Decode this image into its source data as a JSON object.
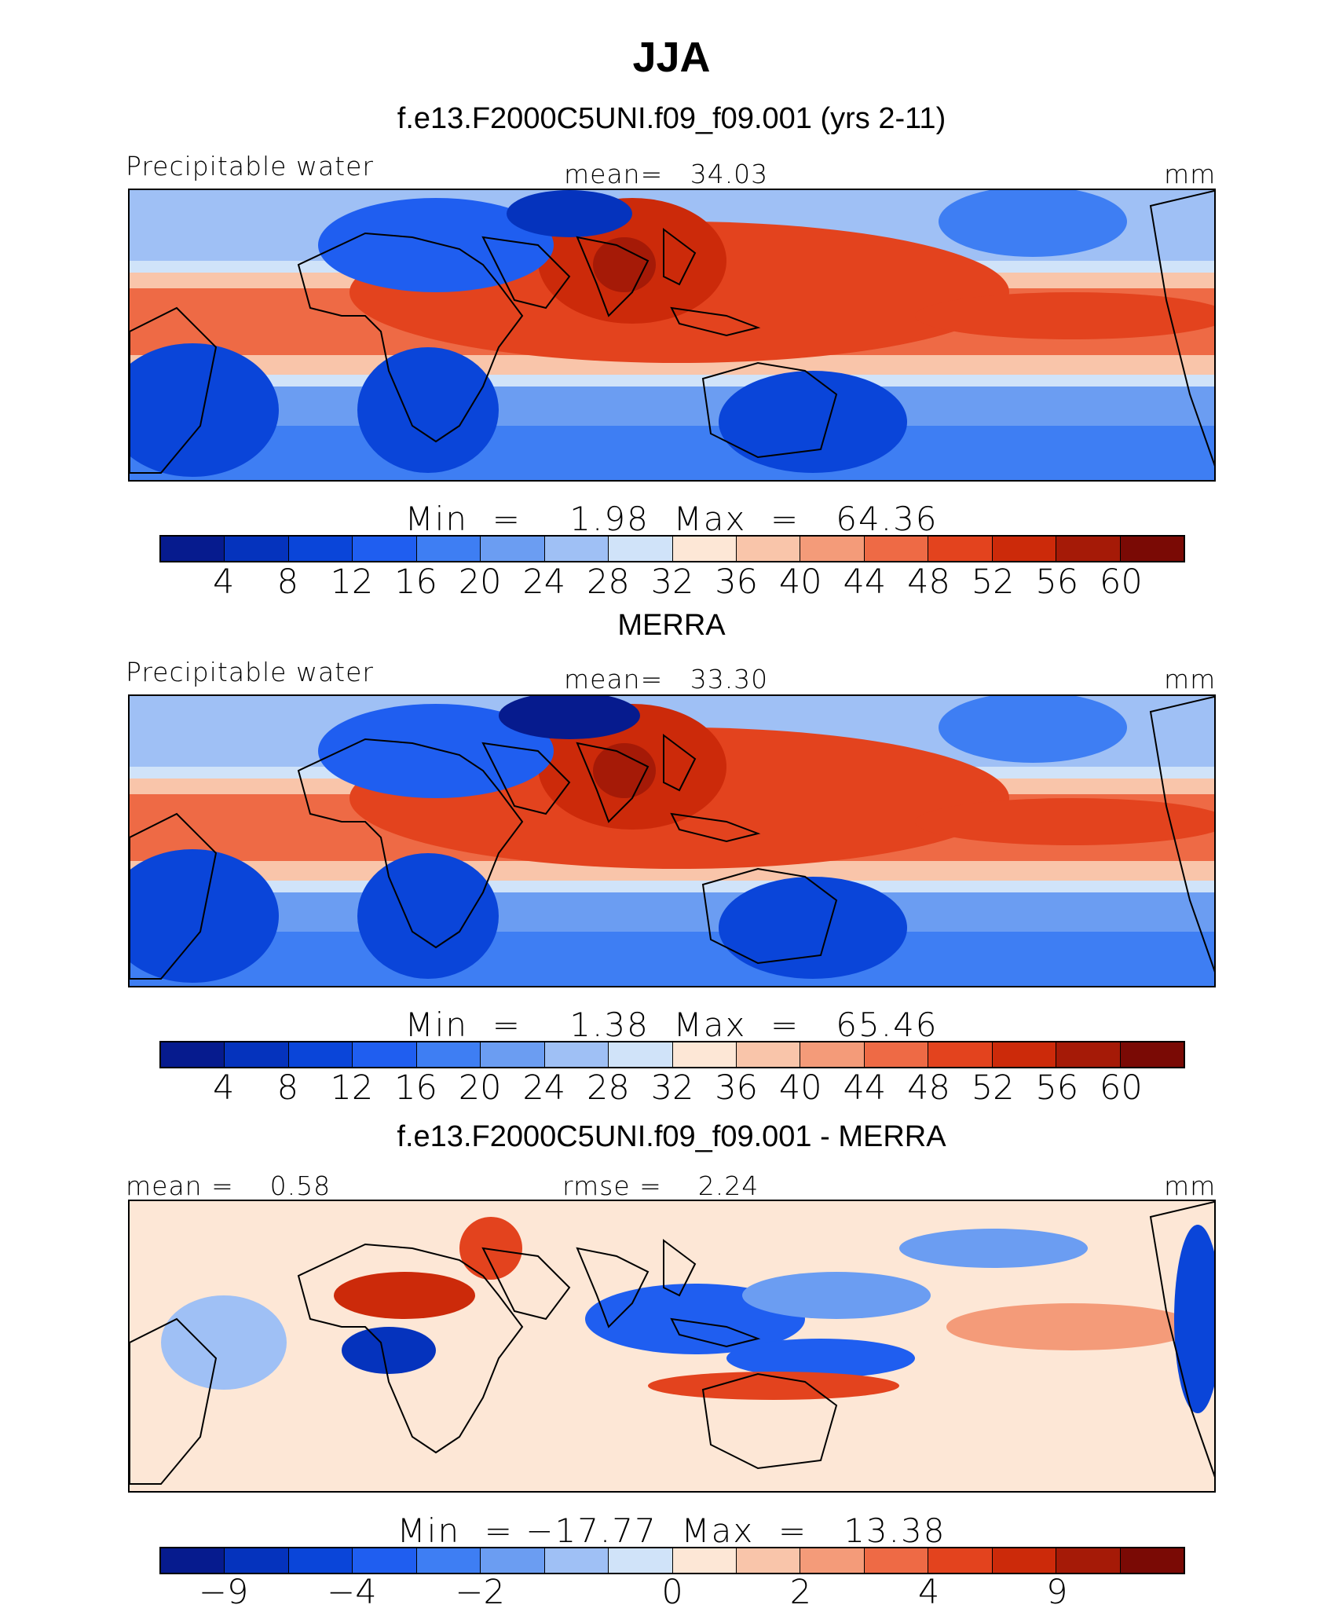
{
  "figure": {
    "title": "JJA",
    "units": "mm",
    "colors": {
      "blue_to_red_16": [
        "#061b8e",
        "#0533bd",
        "#0a45d9",
        "#1f5ef0",
        "#3e7ef3",
        "#6b9df2",
        "#9fc0f5",
        "#d0e3f9",
        "#fde7d6",
        "#f9c5aa",
        "#f49b79",
        "#ee6a45",
        "#e3431e",
        "#cc2a0a",
        "#a51a07",
        "#7a0a05"
      ],
      "land_outline": "#000000"
    }
  },
  "chart_data": [
    {
      "type": "heatmap",
      "title": "f.e13.F2000C5UNI.f09_f09.001 (yrs 2-11)",
      "left_label": "Precipitable water",
      "center_label": "mean=   34.03",
      "right_label": "mm",
      "mean": 34.03,
      "min": 1.98,
      "max": 64.36,
      "stats_text": "Min  =    1.98  Max  =   64.36",
      "colorbar_levels": [
        4,
        8,
        12,
        16,
        20,
        24,
        28,
        32,
        36,
        40,
        44,
        48,
        52,
        56,
        60
      ],
      "colorbar_tick_labels": [
        "4",
        "8",
        "12",
        "16",
        "20",
        "24",
        "28",
        "32",
        "36",
        "40",
        "44",
        "48",
        "52",
        "56",
        "60"
      ]
    },
    {
      "type": "heatmap",
      "title": "MERRA",
      "left_label": "Precipitable water",
      "center_label": "mean=   33.30",
      "right_label": "mm",
      "mean": 33.3,
      "min": 1.38,
      "max": 65.46,
      "stats_text": "Min  =    1.38  Max  =   65.46",
      "colorbar_levels": [
        4,
        8,
        12,
        16,
        20,
        24,
        28,
        32,
        36,
        40,
        44,
        48,
        52,
        56,
        60
      ],
      "colorbar_tick_labels": [
        "4",
        "8",
        "12",
        "16",
        "20",
        "24",
        "28",
        "32",
        "36",
        "40",
        "44",
        "48",
        "52",
        "56",
        "60"
      ]
    },
    {
      "type": "heatmap",
      "title": "f.e13.F2000C5UNI.f09_f09.001 - MERRA",
      "left_label": "mean =    0.58",
      "center_label": "rmse =    2.24",
      "right_label": "mm",
      "mean": 0.58,
      "rmse": 2.24,
      "min": -17.77,
      "max": 13.38,
      "stats_text": "Min  = −17.77  Max  =   13.38",
      "colorbar_levels": [
        -9,
        -6,
        -4,
        -3,
        -2,
        -1,
        0,
        1,
        2,
        3,
        4,
        6,
        9
      ],
      "colorbar_tick_labels": [
        "−9",
        "−4",
        "−2",
        "0",
        "2",
        "4",
        "9"
      ]
    }
  ]
}
